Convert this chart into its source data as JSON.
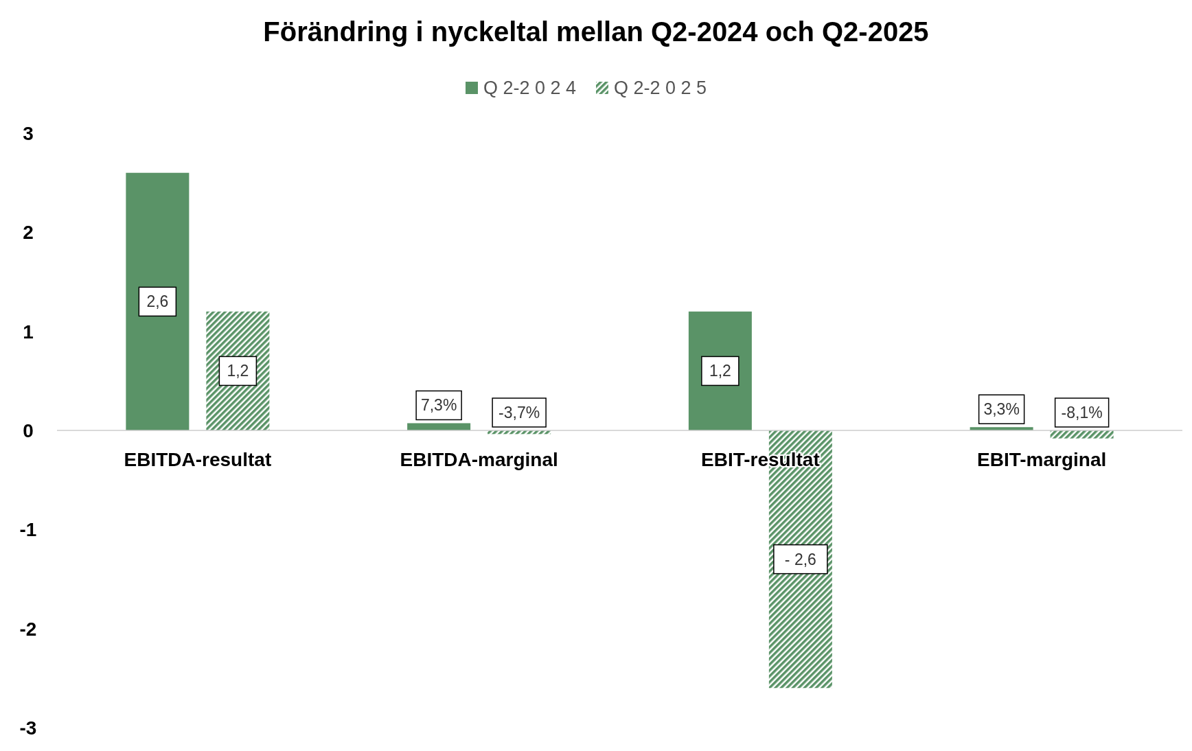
{
  "chart_data": {
    "type": "bar",
    "title": "Förändring i nyckeltal mellan Q2-2024 och Q2-2025",
    "categories": [
      "EBITDA-resultat",
      "EBITDA-marginal",
      "EBIT-resultat",
      "EBIT-marginal"
    ],
    "series": [
      {
        "name": "Q 2-2 0 2 4",
        "color": "#5a9367",
        "values": [
          2.6,
          0.073,
          1.2,
          0.033
        ],
        "value_labels": [
          "2,6",
          "7,3%",
          "1,2",
          "3,3%"
        ]
      },
      {
        "name": "Q 2-2 0 2 5",
        "color": "#5a9367",
        "values": [
          1.2,
          -0.037,
          -2.6,
          -0.081
        ],
        "value_labels": [
          "1,2",
          "-3,7%",
          "- 2,6",
          "-8,1%"
        ]
      }
    ],
    "ylim": [
      -3,
      3
    ],
    "yticks": [
      -3,
      -2,
      -1,
      0,
      1,
      2,
      3
    ],
    "grid": false,
    "legend": "top"
  }
}
